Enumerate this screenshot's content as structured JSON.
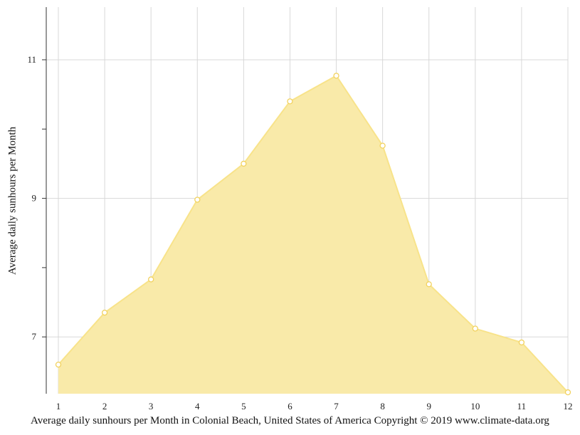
{
  "chart_data": {
    "type": "area",
    "title": "",
    "caption": "Average daily sunhours per Month in Colonial Beach, United States of America Copyright © 2019 www.climate-data.org",
    "xlabel": "",
    "ylabel": "Average daily sunhours per Month",
    "x": [
      1,
      2,
      3,
      4,
      5,
      6,
      7,
      8,
      9,
      10,
      11,
      12
    ],
    "x_tick_labels": [
      "1",
      "2",
      "3",
      "4",
      "5",
      "6",
      "7",
      "8",
      "9",
      "10",
      "11",
      "12"
    ],
    "series": [
      {
        "values": [
          6.6,
          7.35,
          7.83,
          8.98,
          9.5,
          10.4,
          10.77,
          9.76,
          7.76,
          7.12,
          6.92,
          6.2
        ]
      }
    ],
    "y_ticks": [
      7,
      9,
      11
    ],
    "y_tick_labels": [
      "7",
      "9",
      "11"
    ],
    "ylim": [
      6.18,
      11.76
    ],
    "grid": true,
    "colors": {
      "fill": "#f9eaa9",
      "line": "#f8e38a",
      "marker_stroke": "#f2d25e",
      "grid": "#d8d8d8",
      "axis": "#333333"
    }
  }
}
